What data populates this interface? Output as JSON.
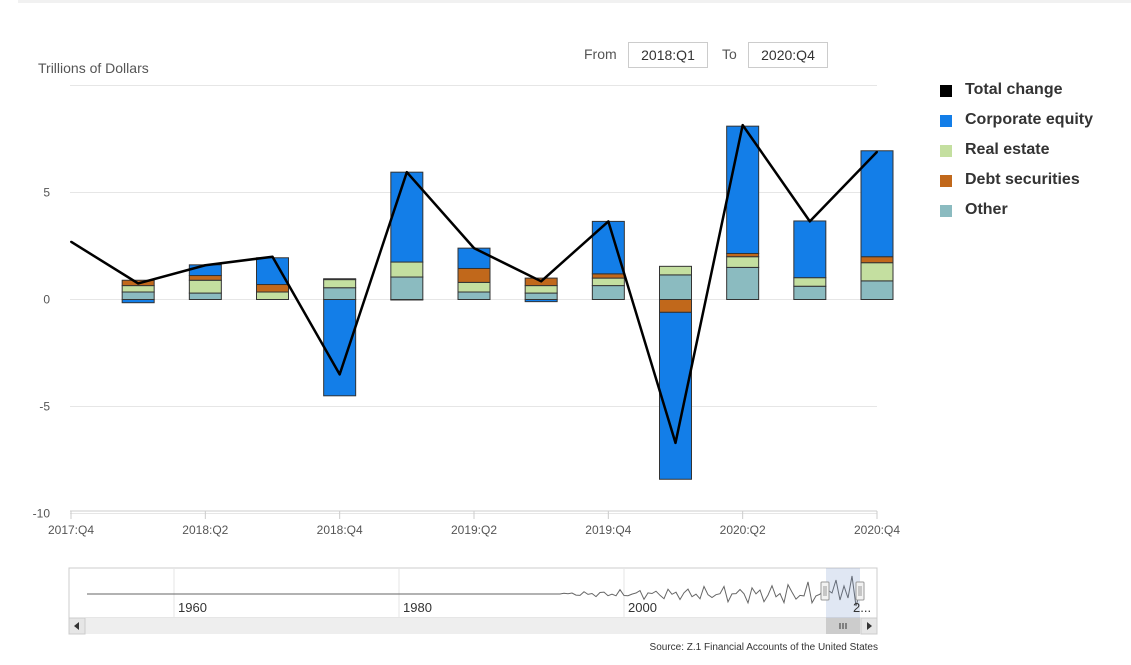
{
  "range": {
    "from_label": "From",
    "from_value": "2018:Q1",
    "to_label": "To",
    "to_value": "2020:Q4"
  },
  "y_axis_title": "Trillions of Dollars",
  "legend": [
    {
      "label": "Total change",
      "color": "#000000"
    },
    {
      "label": "Corporate equity",
      "color": "#137ee8"
    },
    {
      "label": "Real estate",
      "color": "#c4dfa0"
    },
    {
      "label": "Debt securities",
      "color": "#c1681b"
    },
    {
      "label": "Other",
      "color": "#8bbbc0"
    }
  ],
  "navigator": {
    "year_labels": [
      "1960",
      "1980",
      "2000",
      "2..."
    ]
  },
  "source": "Source: Z.1 Financial Accounts of the United States",
  "chart_data": {
    "type": "bar",
    "stacked": true,
    "categories": [
      "2017:Q4",
      "2018:Q1",
      "2018:Q2",
      "2018:Q3",
      "2018:Q4",
      "2019:Q1",
      "2019:Q2",
      "2019:Q3",
      "2019:Q4",
      "2020:Q1",
      "2020:Q2",
      "2020:Q3",
      "2020:Q4"
    ],
    "x_tick_labels": [
      "2017:Q4",
      "2018:Q2",
      "2018:Q4",
      "2019:Q2",
      "2019:Q4",
      "2020:Q2",
      "2020:Q4"
    ],
    "ylabel": "Trillions of Dollars",
    "ylim": [
      -10,
      10
    ],
    "y_ticks": [
      -10,
      -5,
      0,
      5
    ],
    "series": [
      {
        "name": "Other",
        "color": "#8bbbc0",
        "values": [
          null,
          0.35,
          0.3,
          0.0,
          0.55,
          1.05,
          0.35,
          0.3,
          0.65,
          1.15,
          1.5,
          0.62,
          0.87
        ]
      },
      {
        "name": "Real estate",
        "color": "#c4dfa0",
        "values": [
          null,
          0.3,
          0.6,
          0.35,
          0.38,
          0.7,
          0.45,
          0.35,
          0.35,
          0.4,
          0.5,
          0.4,
          0.85
        ]
      },
      {
        "name": "Debt securities",
        "color": "#c1681b",
        "values": [
          null,
          0.25,
          0.22,
          0.35,
          0.04,
          -0.02,
          0.65,
          0.35,
          0.2,
          -0.6,
          0.15,
          0.0,
          0.28
        ]
      },
      {
        "name": "Corporate equity",
        "color": "#137ee8",
        "values": [
          null,
          -0.15,
          0.5,
          1.25,
          -4.5,
          4.2,
          0.95,
          -0.1,
          2.45,
          -7.8,
          5.95,
          2.65,
          4.95
        ]
      }
    ],
    "line": {
      "name": "Total change",
      "color": "#000000",
      "values": [
        2.7,
        0.75,
        1.6,
        2.0,
        -3.5,
        5.95,
        2.4,
        0.85,
        3.65,
        -6.7,
        8.15,
        3.65,
        6.9
      ]
    }
  }
}
